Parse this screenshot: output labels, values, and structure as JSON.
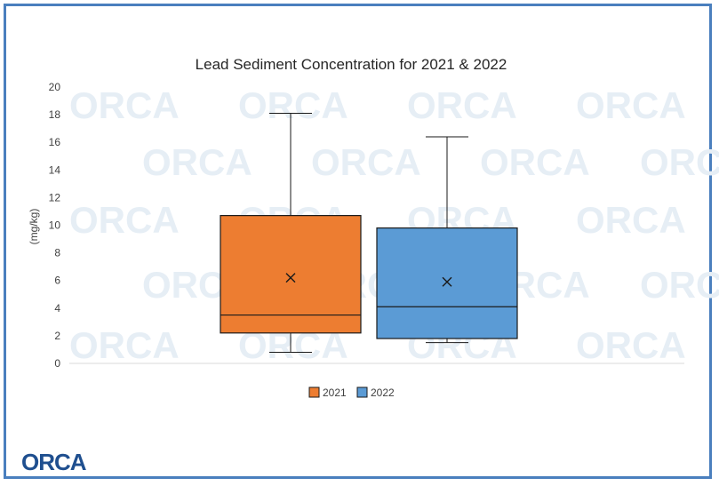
{
  "chart_data": {
    "type": "box",
    "title": "Lead Sediment Concentration for 2021 & 2022",
    "xlabel": "",
    "ylabel": "(mg/kg)",
    "ylim": [
      0,
      20
    ],
    "yticks": [
      0,
      2,
      4,
      6,
      8,
      10,
      12,
      14,
      16,
      18,
      20
    ],
    "grid": false,
    "legend": "bottom",
    "series": [
      {
        "name": "2021",
        "color": "#ed7d31",
        "min": 0.8,
        "q1": 2.2,
        "median": 3.5,
        "q3": 10.7,
        "max": 18.1,
        "mean": 6.2
      },
      {
        "name": "2022",
        "color": "#5b9bd5",
        "min": 1.5,
        "q1": 1.8,
        "median": 4.1,
        "q3": 9.8,
        "max": 16.4,
        "mean": 5.9
      }
    ]
  },
  "watermark": {
    "text": "ORCA"
  },
  "logo": {
    "text": "ORCA",
    "subtitle": "",
    "color": "#1f4f8f"
  },
  "colors": {
    "frame": "#4a7fbe",
    "axis": "#d9d9d9",
    "box_stroke": "#1a1a1a"
  }
}
